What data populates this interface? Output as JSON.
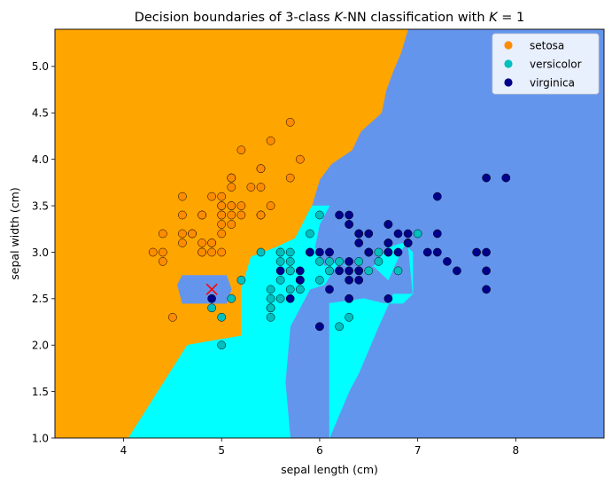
{
  "chart_data": {
    "type": "scatter",
    "title_parts": [
      "Decision boundaries of 3-class ",
      "K",
      "-NN classification with ",
      "K",
      " = 1"
    ],
    "xlabel": "sepal length (cm)",
    "ylabel": "sepal width (cm)",
    "xlim": [
      3.3,
      8.9
    ],
    "ylim": [
      1.0,
      5.4
    ],
    "x_ticks": [
      4,
      5,
      6,
      7,
      8
    ],
    "y_ticks": [
      1.0,
      1.5,
      2.0,
      2.5,
      3.0,
      3.5,
      4.0,
      4.5,
      5.0
    ],
    "grid": false,
    "legend_position": "top-right",
    "region_colors": {
      "setosa": "#FFA500",
      "versicolor": "#00FFFF",
      "virginica": "#6495ED"
    },
    "boundary_regions": [
      {
        "class": "virginica",
        "polygon": [
          [
            3.3,
            1.0
          ],
          [
            8.9,
            1.0
          ],
          [
            8.9,
            5.4
          ],
          [
            3.3,
            5.4
          ]
        ]
      },
      {
        "class": "setosa",
        "polygon": [
          [
            3.3,
            1.0
          ],
          [
            4.05,
            1.0
          ],
          [
            4.65,
            2.0
          ],
          [
            5.2,
            2.1
          ],
          [
            5.2,
            2.6
          ],
          [
            5.3,
            2.95
          ],
          [
            5.55,
            3.05
          ],
          [
            5.75,
            3.15
          ],
          [
            5.92,
            3.5
          ],
          [
            6.0,
            3.78
          ],
          [
            6.12,
            3.95
          ],
          [
            6.33,
            4.1
          ],
          [
            6.42,
            4.3
          ],
          [
            6.63,
            4.5
          ],
          [
            6.68,
            4.75
          ],
          [
            6.75,
            4.95
          ],
          [
            6.83,
            5.15
          ],
          [
            6.9,
            5.4
          ],
          [
            3.3,
            5.4
          ]
        ]
      },
      {
        "class": "virginica",
        "polygon": [
          [
            4.55,
            2.65
          ],
          [
            4.6,
            2.75
          ],
          [
            5.05,
            2.75
          ],
          [
            5.1,
            2.6
          ],
          [
            5.05,
            2.45
          ],
          [
            4.6,
            2.45
          ]
        ]
      },
      {
        "class": "versicolor",
        "polygon": [
          [
            4.05,
            1.0
          ],
          [
            5.7,
            1.0
          ],
          [
            5.65,
            1.6
          ],
          [
            5.7,
            2.2
          ],
          [
            5.9,
            2.6
          ],
          [
            6.05,
            2.65
          ],
          [
            6.2,
            2.9
          ],
          [
            6.4,
            2.75
          ],
          [
            6.55,
            2.85
          ],
          [
            6.7,
            2.7
          ],
          [
            6.85,
            3.05
          ],
          [
            6.9,
            3.1
          ],
          [
            6.95,
            2.55
          ],
          [
            6.75,
            2.55
          ],
          [
            6.6,
            2.2
          ],
          [
            6.4,
            1.7
          ],
          [
            6.3,
            1.5
          ],
          [
            6.1,
            1.0
          ],
          [
            6.1,
            2.45
          ],
          [
            6.45,
            2.5
          ],
          [
            6.65,
            2.45
          ],
          [
            6.85,
            2.45
          ],
          [
            6.95,
            2.55
          ],
          [
            6.95,
            3.0
          ],
          [
            6.85,
            3.1
          ],
          [
            6.7,
            3.05
          ],
          [
            6.55,
            2.85
          ],
          [
            6.4,
            2.75
          ],
          [
            6.2,
            2.9
          ],
          [
            6.05,
            2.85
          ],
          [
            5.95,
            3.05
          ],
          [
            6.0,
            3.3
          ],
          [
            6.1,
            3.5
          ],
          [
            5.92,
            3.5
          ],
          [
            5.75,
            3.15
          ],
          [
            5.55,
            3.05
          ],
          [
            5.3,
            2.95
          ],
          [
            5.2,
            2.6
          ],
          [
            5.2,
            2.1
          ],
          [
            4.65,
            2.0
          ]
        ]
      },
      {
        "class": "virginica",
        "polygon": [
          [
            4.6,
            2.45
          ],
          [
            5.05,
            2.45
          ],
          [
            5.1,
            2.6
          ],
          [
            5.05,
            2.75
          ],
          [
            4.6,
            2.75
          ],
          [
            4.55,
            2.65
          ]
        ]
      }
    ],
    "legend_swatches": {
      "setosa": "#FF8C00",
      "versicolor": "#00BFBF",
      "virginica": "#00008B"
    },
    "series": [
      {
        "name": "setosa",
        "color": "#FF8C00",
        "points": [
          [
            5.1,
            3.5
          ],
          [
            4.9,
            3.0
          ],
          [
            4.7,
            3.2
          ],
          [
            4.6,
            3.1
          ],
          [
            5.0,
            3.6
          ],
          [
            5.4,
            3.9
          ],
          [
            4.6,
            3.4
          ],
          [
            5.0,
            3.4
          ],
          [
            4.4,
            2.9
          ],
          [
            4.9,
            3.1
          ],
          [
            5.4,
            3.7
          ],
          [
            4.8,
            3.4
          ],
          [
            4.8,
            3.0
          ],
          [
            4.3,
            3.0
          ],
          [
            5.8,
            4.0
          ],
          [
            5.7,
            4.4
          ],
          [
            5.4,
            3.9
          ],
          [
            5.1,
            3.5
          ],
          [
            5.7,
            3.8
          ],
          [
            5.1,
            3.8
          ],
          [
            5.4,
            3.4
          ],
          [
            5.1,
            3.7
          ],
          [
            4.6,
            3.6
          ],
          [
            5.1,
            3.3
          ],
          [
            4.8,
            3.4
          ],
          [
            5.0,
            3.0
          ],
          [
            5.0,
            3.4
          ],
          [
            5.2,
            3.5
          ],
          [
            5.2,
            3.4
          ],
          [
            4.7,
            3.2
          ],
          [
            4.8,
            3.1
          ],
          [
            5.4,
            3.4
          ],
          [
            5.2,
            4.1
          ],
          [
            5.5,
            4.2
          ],
          [
            4.9,
            3.1
          ],
          [
            5.0,
            3.2
          ],
          [
            5.5,
            3.5
          ],
          [
            4.9,
            3.6
          ],
          [
            4.4,
            3.0
          ],
          [
            5.1,
            3.4
          ],
          [
            5.0,
            3.5
          ],
          [
            4.5,
            2.3
          ],
          [
            4.4,
            3.2
          ],
          [
            5.0,
            3.5
          ],
          [
            5.1,
            3.8
          ],
          [
            4.8,
            3.0
          ],
          [
            5.1,
            3.8
          ],
          [
            4.6,
            3.2
          ],
          [
            5.3,
            3.7
          ],
          [
            5.0,
            3.3
          ]
        ]
      },
      {
        "name": "versicolor",
        "color": "#00BFBF",
        "points": [
          [
            7.0,
            3.2
          ],
          [
            6.4,
            3.2
          ],
          [
            6.9,
            3.1
          ],
          [
            5.5,
            2.3
          ],
          [
            6.5,
            2.8
          ],
          [
            5.7,
            2.8
          ],
          [
            6.3,
            3.3
          ],
          [
            4.9,
            2.4
          ],
          [
            6.6,
            2.9
          ],
          [
            5.2,
            2.7
          ],
          [
            5.0,
            2.0
          ],
          [
            5.9,
            3.0
          ],
          [
            6.0,
            2.2
          ],
          [
            6.1,
            2.9
          ],
          [
            5.6,
            2.9
          ],
          [
            6.7,
            3.1
          ],
          [
            5.6,
            3.0
          ],
          [
            5.8,
            2.7
          ],
          [
            6.2,
            2.2
          ],
          [
            5.6,
            2.5
          ],
          [
            5.9,
            3.2
          ],
          [
            6.1,
            2.8
          ],
          [
            6.3,
            2.5
          ],
          [
            6.1,
            2.8
          ],
          [
            6.4,
            2.9
          ],
          [
            6.6,
            3.0
          ],
          [
            6.8,
            2.8
          ],
          [
            6.7,
            3.0
          ],
          [
            6.0,
            2.9
          ],
          [
            5.7,
            2.6
          ],
          [
            5.5,
            2.4
          ],
          [
            5.5,
            2.4
          ],
          [
            5.8,
            2.7
          ],
          [
            6.0,
            2.7
          ],
          [
            5.4,
            3.0
          ],
          [
            6.0,
            3.4
          ],
          [
            6.7,
            3.1
          ],
          [
            6.3,
            2.3
          ],
          [
            5.6,
            3.0
          ],
          [
            5.5,
            2.5
          ],
          [
            5.5,
            2.6
          ],
          [
            6.1,
            3.0
          ],
          [
            5.8,
            2.6
          ],
          [
            5.0,
            2.3
          ],
          [
            5.6,
            2.7
          ],
          [
            5.7,
            3.0
          ],
          [
            5.7,
            2.9
          ],
          [
            6.2,
            2.9
          ],
          [
            5.1,
            2.5
          ],
          [
            5.7,
            2.8
          ]
        ]
      },
      {
        "name": "virginica",
        "color": "#00008B",
        "points": [
          [
            6.3,
            3.3
          ],
          [
            5.8,
            2.7
          ],
          [
            7.1,
            3.0
          ],
          [
            6.3,
            2.9
          ],
          [
            6.5,
            3.0
          ],
          [
            7.6,
            3.0
          ],
          [
            4.9,
            2.5
          ],
          [
            7.3,
            2.9
          ],
          [
            6.7,
            2.5
          ],
          [
            7.2,
            3.6
          ],
          [
            6.5,
            3.2
          ],
          [
            6.4,
            2.7
          ],
          [
            6.8,
            3.0
          ],
          [
            5.7,
            2.5
          ],
          [
            5.8,
            2.8
          ],
          [
            6.4,
            3.2
          ],
          [
            6.5,
            3.0
          ],
          [
            7.7,
            3.8
          ],
          [
            7.7,
            2.6
          ],
          [
            6.0,
            2.2
          ],
          [
            6.9,
            3.2
          ],
          [
            5.6,
            2.8
          ],
          [
            7.7,
            2.8
          ],
          [
            6.3,
            2.7
          ],
          [
            6.7,
            3.3
          ],
          [
            7.2,
            3.2
          ],
          [
            6.2,
            2.8
          ],
          [
            6.1,
            3.0
          ],
          [
            6.4,
            2.8
          ],
          [
            7.2,
            3.0
          ],
          [
            7.4,
            2.8
          ],
          [
            7.9,
            3.8
          ],
          [
            6.4,
            2.8
          ],
          [
            6.3,
            2.8
          ],
          [
            6.1,
            2.6
          ],
          [
            7.7,
            3.0
          ],
          [
            6.3,
            3.4
          ],
          [
            6.4,
            3.1
          ],
          [
            6.0,
            3.0
          ],
          [
            6.9,
            3.1
          ],
          [
            6.7,
            3.1
          ],
          [
            6.9,
            3.1
          ],
          [
            5.8,
            2.7
          ],
          [
            6.8,
            3.2
          ],
          [
            6.7,
            3.3
          ],
          [
            6.7,
            3.0
          ],
          [
            6.3,
            2.5
          ],
          [
            6.5,
            3.0
          ],
          [
            6.2,
            3.4
          ],
          [
            5.9,
            3.0
          ]
        ]
      }
    ],
    "query_point": {
      "x": 4.9,
      "y": 2.6,
      "marker": "x",
      "color": "#FF0000"
    }
  }
}
